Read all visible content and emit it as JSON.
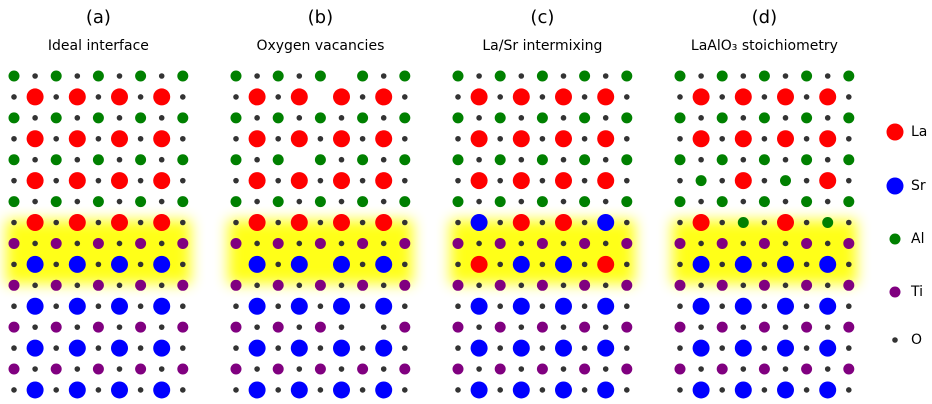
{
  "panels": [
    {
      "label": "(a)",
      "title": "Ideal interface"
    },
    {
      "label": "(b)",
      "title": "Oxygen vacancies"
    },
    {
      "label": "(c)",
      "title": "La/Sr intermixing"
    },
    {
      "label": "(d)",
      "title": "LaAlO₃ stoichiometry"
    }
  ],
  "legend": [
    {
      "label": "La"
    },
    {
      "label": "Sr"
    },
    {
      "label": "Al"
    },
    {
      "label": "Ti"
    },
    {
      "label": "O"
    }
  ]
}
